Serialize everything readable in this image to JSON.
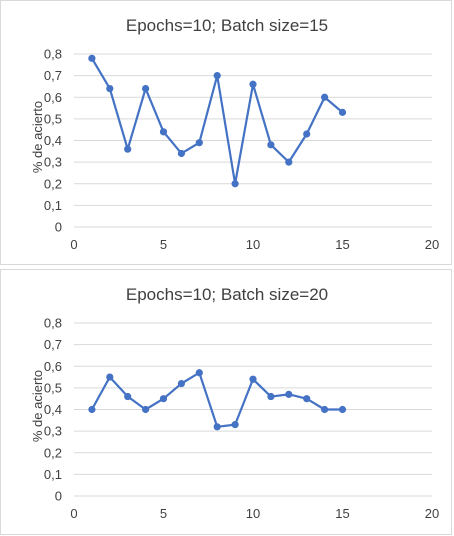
{
  "chart_data": [
    {
      "type": "scatter",
      "title": "Epochs=10; Batch size=15",
      "xlabel": "",
      "ylabel": "% de acierto",
      "xlim": [
        0,
        20
      ],
      "ylim": [
        0,
        0.8
      ],
      "xticks": [
        0,
        5,
        10,
        15,
        20
      ],
      "xtick_labels": [
        "0",
        "5",
        "10",
        "15",
        "20"
      ],
      "yticks": [
        0,
        0.1,
        0.2,
        0.3,
        0.4,
        0.5,
        0.6,
        0.7,
        0.8
      ],
      "ytick_labels": [
        "0",
        "0,1",
        "0,2",
        "0,3",
        "0,4",
        "0,5",
        "0,6",
        "0,7",
        "0,8"
      ],
      "grid": true,
      "color": "#4472c4",
      "series": [
        {
          "x": [
            1,
            2,
            3,
            4,
            5,
            6,
            7,
            8,
            9,
            10,
            11,
            12,
            13,
            14,
            15
          ],
          "y": [
            0.78,
            0.64,
            0.36,
            0.64,
            0.44,
            0.34,
            0.39,
            0.7,
            0.2,
            0.66,
            0.38,
            0.3,
            0.43,
            0.6,
            0.53
          ]
        }
      ]
    },
    {
      "type": "scatter",
      "title": "Epochs=10; Batch size=20",
      "xlabel": "",
      "ylabel": "% de acierto",
      "xlim": [
        0,
        20
      ],
      "ylim": [
        0,
        0.8
      ],
      "xticks": [
        0,
        5,
        10,
        15,
        20
      ],
      "xtick_labels": [
        "0",
        "5",
        "10",
        "15",
        "20"
      ],
      "yticks": [
        0,
        0.1,
        0.2,
        0.3,
        0.4,
        0.5,
        0.6,
        0.7,
        0.8
      ],
      "ytick_labels": [
        "0",
        "0,1",
        "0,2",
        "0,3",
        "0,4",
        "0,5",
        "0,6",
        "0,7",
        "0,8"
      ],
      "grid": true,
      "color": "#4472c4",
      "series": [
        {
          "x": [
            1,
            2,
            3,
            4,
            5,
            6,
            7,
            8,
            9,
            10,
            11,
            12,
            13,
            14,
            15
          ],
          "y": [
            0.4,
            0.55,
            0.46,
            0.4,
            0.45,
            0.52,
            0.57,
            0.32,
            0.33,
            0.54,
            0.46,
            0.47,
            0.45,
            0.4,
            0.4
          ]
        }
      ]
    }
  ]
}
